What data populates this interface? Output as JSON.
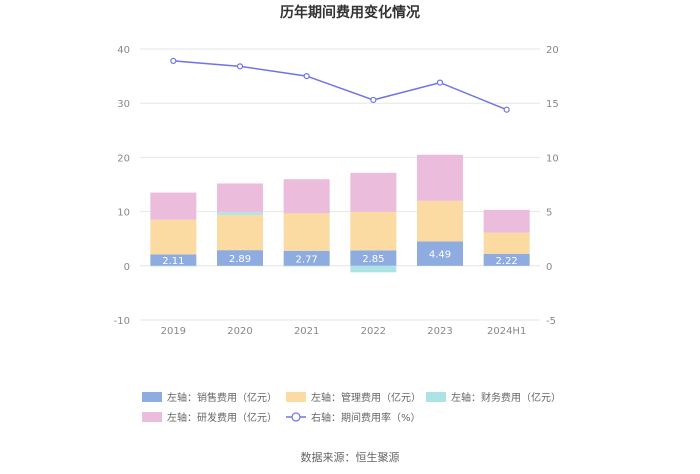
{
  "chart_data": {
    "type": "bar",
    "title": "历年期间费用变化情况",
    "categories": [
      "2019",
      "2020",
      "2021",
      "2022",
      "2023",
      "2024H1"
    ],
    "left_axis": {
      "ticks": [
        "-10",
        "0",
        "10",
        "20",
        "30",
        "40"
      ],
      "ylim": [
        -10,
        40
      ]
    },
    "right_axis": {
      "ticks": [
        "-5",
        "0",
        "5",
        "10",
        "15",
        "20"
      ],
      "ylim": [
        -5,
        20
      ]
    },
    "series": [
      {
        "name": "左轴：销售费用（亿元）",
        "axis": "left",
        "color": "#8eacdf",
        "values": [
          2.11,
          2.89,
          2.77,
          2.85,
          4.49,
          2.22
        ]
      },
      {
        "name": "左轴：管理费用（亿元）",
        "axis": "left",
        "color": "#fcdba3",
        "values": [
          6.4,
          6.5,
          6.9,
          7.1,
          7.5,
          3.9
        ]
      },
      {
        "name": "左轴：财务费用（亿元）",
        "axis": "left",
        "color": "#aee3e6",
        "values": [
          -0.05,
          0.5,
          -0.05,
          -1.2,
          0,
          0
        ]
      },
      {
        "name": "左轴：研发费用（亿元）",
        "axis": "left",
        "color": "#ebbcdc",
        "values": [
          5.0,
          5.3,
          6.3,
          7.2,
          8.5,
          4.2
        ]
      },
      {
        "name": "右轴：期间费用率（%）",
        "axis": "right",
        "type": "line",
        "color": "#6f73e8",
        "values": [
          18.9,
          18.4,
          17.5,
          15.3,
          16.9,
          14.4
        ]
      }
    ],
    "data_labels": [
      "2.11",
      "2.89",
      "2.77",
      "2.85",
      "4.49",
      "2.22"
    ]
  },
  "source": "数据来源：恒生聚源"
}
